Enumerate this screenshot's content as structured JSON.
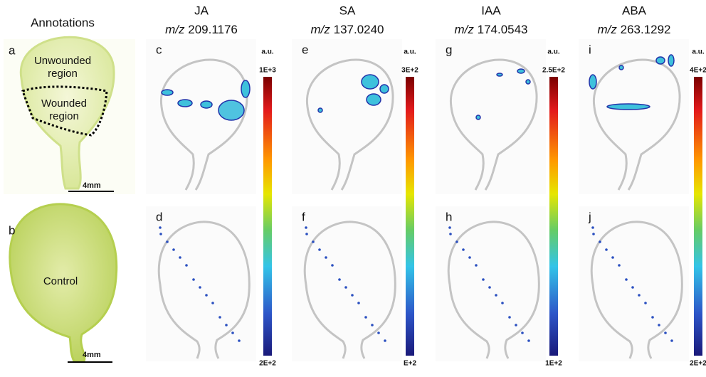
{
  "header": {
    "title": "Annotations"
  },
  "annotations": [
    {
      "letter": "a",
      "labels": [
        "Unwounded",
        "region",
        "Wounded",
        "region"
      ],
      "scale": "4mm"
    },
    {
      "letter": "b",
      "labels": [
        "Control"
      ],
      "scale": "4mm"
    }
  ],
  "columns": [
    {
      "compound": "JA",
      "mz_prefix": "m/z",
      "mz": "209.1176",
      "panels": [
        "c",
        "d"
      ],
      "colorbar": {
        "unit": "a.u.",
        "max": "1E+3",
        "min": "2E+2"
      }
    },
    {
      "compound": "SA",
      "mz_prefix": "m/z",
      "mz": "137.0240",
      "panels": [
        "e",
        "f"
      ],
      "colorbar": {
        "unit": "a.u.",
        "max": "3E+2",
        "min": "E+2"
      }
    },
    {
      "compound": "IAA",
      "mz_prefix": "m/z",
      "mz": "174.0543",
      "panels": [
        "g",
        "h"
      ],
      "colorbar": {
        "unit": "a.u.",
        "max": "2.5E+2",
        "min": "1E+2"
      }
    },
    {
      "compound": "ABA",
      "mz_prefix": "m/z",
      "mz": "263.1292",
      "panels": [
        "i",
        "j"
      ],
      "colorbar": {
        "unit": "a.u.",
        "max": "4E+2",
        "min": "2E+2"
      }
    }
  ]
}
